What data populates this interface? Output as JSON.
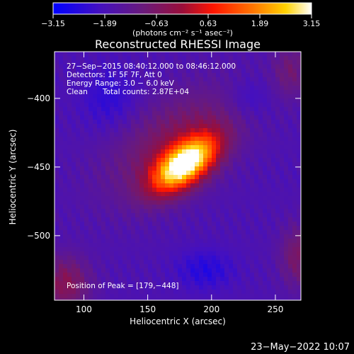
{
  "colorbar": {
    "ticks": [
      "-3.15",
      "-1.89",
      "-0.63",
      "0.63",
      "1.89",
      "3.15"
    ],
    "units": "(photons cm⁻² s⁻¹ asec⁻²)",
    "min": -3.15,
    "max": 3.15
  },
  "colors": {
    "background": "#000000",
    "low": "#0000ff",
    "mid": "#ff2200",
    "high": "#ffffff"
  },
  "chart_data": {
    "type": "heatmap",
    "title": "Reconstructed RHESSI Image",
    "xlabel": "Heliocentric X (arcsec)",
    "ylabel": "Heliocentric Y (arcsec)",
    "xlim": [
      77,
      270
    ],
    "ylim": [
      -547,
      -366
    ],
    "x_ticks": [
      100,
      150,
      200,
      250
    ],
    "y_ticks": [
      -400,
      -450,
      -500
    ],
    "x_tick_labels": [
      "100",
      "150",
      "200",
      "250"
    ],
    "y_tick_labels": [
      "−400",
      "−450",
      "−500"
    ],
    "peak": [
      179,
      -448
    ],
    "annotations": {
      "time": "27−Sep−2015 08:40:12.000 to 08:46:12.000",
      "detectors": "Detectors: 1F 5F 7F, Att 0",
      "energy": "Energy Range: 3.0 − 6.0 keV",
      "method": "Clean",
      "counts": "Total counts: 2.87E+04",
      "peak_text": "Position of Peak = [179,−448]"
    }
  },
  "footer_date": "23−May−2022 10:07"
}
